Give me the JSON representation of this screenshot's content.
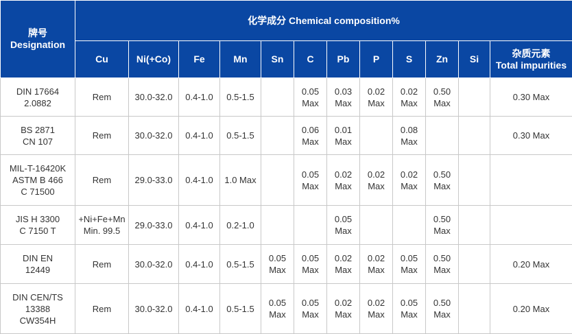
{
  "header": {
    "designation_cn": "牌号",
    "designation_en": "Designation",
    "composition": "化学成分 Chemical composition%",
    "columns": [
      "Cu",
      "Ni(+Co)",
      "Fe",
      "Mn",
      "Sn",
      "C",
      "Pb",
      "P",
      "S",
      "Zn",
      "Si"
    ],
    "impurities_cn": "杂质元素",
    "impurities_en": "Total impurities"
  },
  "rows": [
    {
      "designation": [
        "DIN 17664",
        "2.0882"
      ],
      "cu": [
        "Rem"
      ],
      "ni": [
        "30.0-32.0"
      ],
      "fe": [
        "0.4-1.0"
      ],
      "mn": [
        "0.5-1.5"
      ],
      "sn": [],
      "c": [
        "0.05",
        "Max"
      ],
      "pb": [
        "0.03",
        "Max"
      ],
      "p": [
        "0.02",
        "Max"
      ],
      "s": [
        "0.02",
        "Max"
      ],
      "zn": [
        "0.50",
        "Max"
      ],
      "si": [],
      "total": [
        "0.30 Max"
      ]
    },
    {
      "designation": [
        "BS 2871",
        "CN 107"
      ],
      "cu": [
        "Rem"
      ],
      "ni": [
        "30.0-32.0"
      ],
      "fe": [
        "0.4-1.0"
      ],
      "mn": [
        "0.5-1.5"
      ],
      "sn": [],
      "c": [
        "0.06",
        "Max"
      ],
      "pb": [
        "0.01",
        "Max"
      ],
      "p": [],
      "s": [
        "0.08",
        "Max"
      ],
      "zn": [],
      "si": [],
      "total": [
        "0.30 Max"
      ]
    },
    {
      "designation": [
        "MIL-T-16420K",
        "ASTM B 466",
        "C 71500"
      ],
      "cu": [
        "Rem"
      ],
      "ni": [
        "29.0-33.0"
      ],
      "fe": [
        "0.4-1.0"
      ],
      "mn": [
        "1.0 Max"
      ],
      "sn": [],
      "c": [
        "0.05",
        "Max"
      ],
      "pb": [
        "0.02",
        "Max"
      ],
      "p": [
        "0.02",
        "Max"
      ],
      "s": [
        "0.02",
        "Max"
      ],
      "zn": [
        "0.50",
        "Max"
      ],
      "si": [],
      "total": []
    },
    {
      "designation": [
        "JIS H 3300",
        "C 7150 T"
      ],
      "cu": [
        "+Ni+Fe+Mn",
        "Min. 99.5"
      ],
      "ni": [
        "29.0-33.0"
      ],
      "fe": [
        "0.4-1.0"
      ],
      "mn": [
        "0.2-1.0"
      ],
      "sn": [],
      "c": [],
      "pb": [
        "0.05",
        "Max"
      ],
      "p": [],
      "s": [],
      "zn": [
        "0.50",
        "Max"
      ],
      "si": [],
      "total": []
    },
    {
      "designation": [
        "DIN EN",
        "12449"
      ],
      "cu": [
        "Rem"
      ],
      "ni": [
        "30.0-32.0"
      ],
      "fe": [
        "0.4-1.0"
      ],
      "mn": [
        "0.5-1.5"
      ],
      "sn": [
        "0.05",
        "Max"
      ],
      "c": [
        "0.05",
        "Max"
      ],
      "pb": [
        "0.02",
        "Max"
      ],
      "p": [
        "0.02",
        "Max"
      ],
      "s": [
        "0.05",
        "Max"
      ],
      "zn": [
        "0.50",
        "Max"
      ],
      "si": [],
      "total": [
        "0.20 Max"
      ]
    },
    {
      "designation": [
        "DIN CEN/TS",
        "13388",
        "CW354H"
      ],
      "cu": [
        "Rem"
      ],
      "ni": [
        "30.0-32.0"
      ],
      "fe": [
        "0.4-1.0"
      ],
      "mn": [
        "0.5-1.5"
      ],
      "sn": [
        "0.05",
        "Max"
      ],
      "c": [
        "0.05",
        "Max"
      ],
      "pb": [
        "0.02",
        "Max"
      ],
      "p": [
        "0.02",
        "Max"
      ],
      "s": [
        "0.05",
        "Max"
      ],
      "zn": [
        "0.50",
        "Max"
      ],
      "si": [],
      "total": [
        "0.20 Max"
      ]
    }
  ]
}
